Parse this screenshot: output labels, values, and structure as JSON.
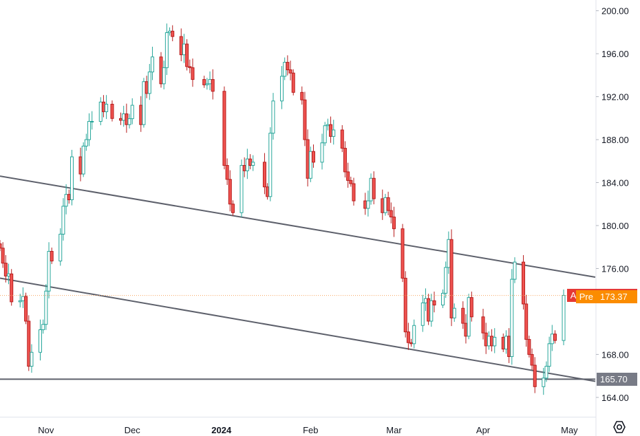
{
  "chart_data": {
    "type": "candlestick",
    "symbol": "AAPL",
    "y_axis": {
      "ticks": [
        "200.00",
        "196.00",
        "192.00",
        "188.00",
        "184.00",
        "180.00",
        "176.00",
        "168.00",
        "164.00"
      ],
      "range": [
        162.2,
        201
      ],
      "position": "right"
    },
    "x_axis": {
      "labels": [
        {
          "text": "Nov",
          "date": "2023-11-01",
          "bold": false
        },
        {
          "text": "Dec",
          "date": "2023-12-01",
          "bold": false
        },
        {
          "text": "2024",
          "date": "2024-01-01",
          "bold": true
        },
        {
          "text": "Feb",
          "date": "2024-02-01",
          "bold": false
        },
        {
          "text": "Mar",
          "date": "2024-03-01",
          "bold": false
        },
        {
          "text": "Apr",
          "date": "2024-04-01",
          "bold": false
        },
        {
          "text": "May",
          "date": "2024-05-01",
          "bold": false
        }
      ],
      "range": [
        "2023-10-16",
        "2024-05-10"
      ]
    },
    "close_series": [
      [
        "2023-10-16",
        177.9
      ],
      [
        "2023-10-17",
        176.5
      ],
      [
        "2023-10-18",
        175.3
      ],
      [
        "2023-10-19",
        175.5
      ],
      [
        "2023-10-20",
        172.9
      ],
      [
        "2023-10-23",
        173.0
      ],
      [
        "2023-10-24",
        173.4
      ],
      [
        "2023-10-25",
        171.1
      ],
      [
        "2023-10-26",
        166.9
      ],
      [
        "2023-10-27",
        168.2
      ],
      [
        "2023-10-30",
        170.3
      ],
      [
        "2023-10-31",
        170.8
      ],
      [
        "2023-11-01",
        173.9
      ],
      [
        "2023-11-02",
        177.6
      ],
      [
        "2023-11-03",
        176.7
      ],
      [
        "2023-11-06",
        179.2
      ],
      [
        "2023-11-07",
        181.8
      ],
      [
        "2023-11-08",
        182.9
      ],
      [
        "2023-11-09",
        182.4
      ],
      [
        "2023-11-10",
        186.4
      ],
      [
        "2023-11-13",
        184.8
      ],
      [
        "2023-11-14",
        187.4
      ],
      [
        "2023-11-15",
        188.0
      ],
      [
        "2023-11-16",
        189.7
      ],
      [
        "2023-11-17",
        189.7
      ],
      [
        "2023-11-20",
        191.5
      ],
      [
        "2023-11-21",
        190.6
      ],
      [
        "2023-11-22",
        191.3
      ],
      [
        "2023-11-24",
        189.97
      ],
      [
        "2023-11-27",
        189.8
      ],
      [
        "2023-11-28",
        190.4
      ],
      [
        "2023-11-29",
        189.4
      ],
      [
        "2023-11-30",
        189.95
      ],
      [
        "2023-12-01",
        191.2
      ],
      [
        "2023-12-04",
        189.4
      ],
      [
        "2023-12-05",
        193.4
      ],
      [
        "2023-12-06",
        192.3
      ],
      [
        "2023-12-07",
        194.3
      ],
      [
        "2023-12-08",
        195.7
      ],
      [
        "2023-12-11",
        193.2
      ],
      [
        "2023-12-12",
        194.7
      ],
      [
        "2023-12-13",
        197.96
      ],
      [
        "2023-12-14",
        198.1
      ],
      [
        "2023-12-15",
        197.6
      ],
      [
        "2023-12-18",
        195.9
      ],
      [
        "2023-12-19",
        196.9
      ],
      [
        "2023-12-20",
        194.8
      ],
      [
        "2023-12-21",
        194.7
      ],
      [
        "2023-12-22",
        193.6
      ],
      [
        "2023-12-26",
        193.1
      ],
      [
        "2023-12-27",
        193.2
      ],
      [
        "2023-12-28",
        193.6
      ],
      [
        "2023-12-29",
        192.5
      ],
      [
        "2024-01-02",
        185.6
      ],
      [
        "2024-01-03",
        184.3
      ],
      [
        "2024-01-04",
        182.0
      ],
      [
        "2024-01-05",
        181.2
      ],
      [
        "2024-01-08",
        185.6
      ],
      [
        "2024-01-09",
        185.1
      ],
      [
        "2024-01-10",
        186.2
      ],
      [
        "2024-01-11",
        185.6
      ],
      [
        "2024-01-12",
        185.9
      ],
      [
        "2024-01-16",
        183.6
      ],
      [
        "2024-01-17",
        182.7
      ],
      [
        "2024-01-18",
        188.6
      ],
      [
        "2024-01-19",
        191.6
      ],
      [
        "2024-01-22",
        193.9
      ],
      [
        "2024-01-23",
        195.2
      ],
      [
        "2024-01-24",
        194.5
      ],
      [
        "2024-01-25",
        194.2
      ],
      [
        "2024-01-26",
        192.4
      ],
      [
        "2024-01-29",
        191.7
      ],
      [
        "2024-01-30",
        188.0
      ],
      [
        "2024-01-31",
        184.4
      ],
      [
        "2024-02-01",
        186.9
      ],
      [
        "2024-02-02",
        185.9
      ],
      [
        "2024-02-05",
        187.7
      ],
      [
        "2024-02-06",
        189.3
      ],
      [
        "2024-02-07",
        189.4
      ],
      [
        "2024-02-08",
        188.3
      ],
      [
        "2024-02-09",
        188.9
      ],
      [
        "2024-02-12",
        187.2
      ],
      [
        "2024-02-13",
        185.0
      ],
      [
        "2024-02-14",
        184.2
      ],
      [
        "2024-02-15",
        183.9
      ],
      [
        "2024-02-16",
        182.3
      ],
      [
        "2024-02-20",
        181.6
      ],
      [
        "2024-02-21",
        182.3
      ],
      [
        "2024-02-22",
        184.4
      ],
      [
        "2024-02-23",
        182.5
      ],
      [
        "2024-02-26",
        181.2
      ],
      [
        "2024-02-27",
        182.6
      ],
      [
        "2024-02-28",
        181.4
      ],
      [
        "2024-02-29",
        180.8
      ],
      [
        "2024-03-01",
        179.7
      ],
      [
        "2024-03-04",
        175.1
      ],
      [
        "2024-03-05",
        170.1
      ],
      [
        "2024-03-06",
        169.1
      ],
      [
        "2024-03-07",
        169.0
      ],
      [
        "2024-03-08",
        170.7
      ],
      [
        "2024-03-11",
        172.8
      ],
      [
        "2024-03-12",
        173.2
      ],
      [
        "2024-03-13",
        171.1
      ],
      [
        "2024-03-14",
        173.0
      ],
      [
        "2024-03-15",
        172.6
      ],
      [
        "2024-03-18",
        173.7
      ],
      [
        "2024-03-19",
        176.1
      ],
      [
        "2024-03-20",
        178.7
      ],
      [
        "2024-03-21",
        171.4
      ],
      [
        "2024-03-22",
        172.3
      ],
      [
        "2024-03-25",
        170.9
      ],
      [
        "2024-03-26",
        169.7
      ],
      [
        "2024-03-27",
        173.3
      ],
      [
        "2024-03-28",
        171.5
      ],
      [
        "2024-04-01",
        170.0
      ],
      [
        "2024-04-02",
        168.8
      ],
      [
        "2024-04-03",
        169.7
      ],
      [
        "2024-04-04",
        168.8
      ],
      [
        "2024-04-05",
        169.6
      ],
      [
        "2024-04-08",
        168.5
      ],
      [
        "2024-04-09",
        169.7
      ],
      [
        "2024-04-10",
        167.8
      ],
      [
        "2024-04-11",
        175.0
      ],
      [
        "2024-04-12",
        176.6
      ],
      [
        "2024-04-15",
        172.7
      ],
      [
        "2024-04-16",
        169.4
      ],
      [
        "2024-04-17",
        168.0
      ],
      [
        "2024-04-18",
        167.0
      ],
      [
        "2024-04-19",
        165.0
      ],
      [
        "2024-04-22",
        165.8
      ],
      [
        "2024-04-23",
        166.9
      ],
      [
        "2024-04-24",
        169.0
      ],
      [
        "2024-04-25",
        169.9
      ],
      [
        "2024-04-26",
        169.3
      ],
      [
        "2024-04-29",
        173.5
      ]
    ],
    "trendlines": [
      {
        "name": "upper-channel",
        "points": [
          [
            "2023-10-16",
            184.6
          ],
          [
            "2024-05-10",
            175.2
          ]
        ],
        "color": "#5d606b"
      },
      {
        "name": "lower-channel",
        "points": [
          [
            "2023-10-16",
            175.1
          ],
          [
            "2024-05-10",
            165.5
          ]
        ],
        "color": "#5d606b"
      },
      {
        "name": "support",
        "points": [
          [
            "2023-10-16",
            165.7
          ],
          [
            "2024-05-10",
            165.7
          ]
        ],
        "color": "#5d606b"
      }
    ],
    "price_line": {
      "value": 173.49,
      "color": "#f7a35c"
    },
    "labels": [
      {
        "name": "AAPL",
        "value": "173.49",
        "price": 173.49,
        "color": "#e53935"
      },
      {
        "name": "Pre",
        "value": "173.37",
        "price": 173.37,
        "color": "#fb8c00"
      },
      {
        "name": "",
        "value": "165.70",
        "price": 165.7,
        "color": "#787b86"
      }
    ],
    "colors": {
      "up": "#ffffff",
      "up_border": "#26a69a",
      "down": "#ef5350",
      "down_border": "#b71c1c",
      "wick_up": "#26a69a",
      "wick_down": "#b71c1c",
      "axis": "#e0e3eb",
      "line": "#5d606b"
    },
    "grid": false,
    "legend": "none"
  },
  "icons": {
    "settings": "settings-gear-icon"
  }
}
